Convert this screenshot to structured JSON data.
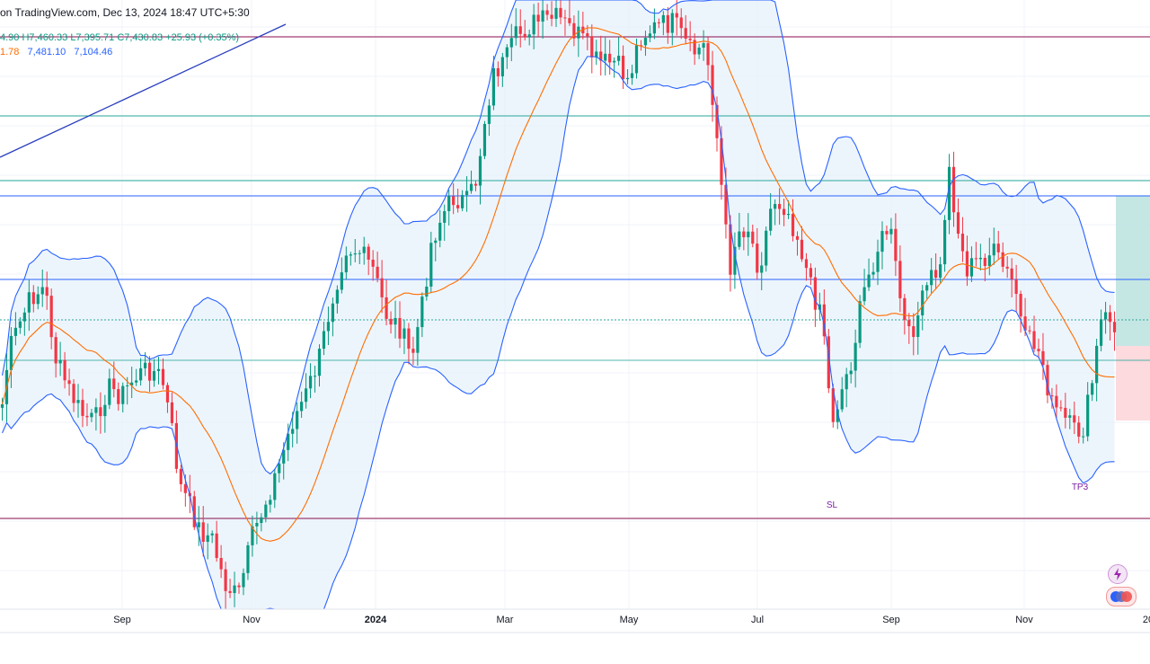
{
  "header": {
    "published_line": "on TradingView.com, Dec 13, 2024 18:47 UTC+5:30",
    "ohlc": {
      "o": "4.90",
      "h": "H7,460.33",
      "l": "L7,395.71",
      "c": "C7,430.83",
      "change": "+25.93 (+0.35%)"
    },
    "bb": {
      "basis": "1.78",
      "upper": "7,481.10",
      "lower": "7,104.46"
    }
  },
  "colors": {
    "up": "#089981",
    "down": "#f23645",
    "bb_band": "#2962ff",
    "bb_basis": "#ff6d00",
    "band_fill": "#e3f0fb",
    "res_line": "#880e4f",
    "hline_teal": "#26a69a",
    "hline_blue": "#2962ff",
    "tp_zone": "#b2dfdb",
    "sl_zone": "#fcd6da"
  },
  "chart_data": {
    "type": "candlestick",
    "x_axis": {
      "labels": [
        "Sep",
        "Nov",
        "2024",
        "Mar",
        "May",
        "Jul",
        "Sep",
        "Nov",
        "20"
      ]
    },
    "annotations": [
      {
        "text": "SL"
      },
      {
        "text": "TP3"
      }
    ],
    "indicators": [
      "Bollinger Bands (basis, upper, lower)"
    ],
    "legend_position": "top-left"
  },
  "icons": [
    "lightning-icon",
    "layers-icon"
  ]
}
